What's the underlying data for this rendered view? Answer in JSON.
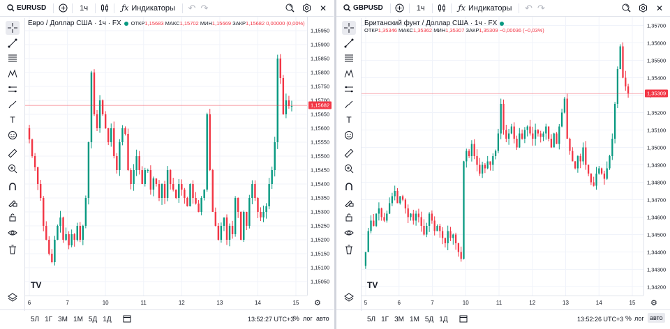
{
  "panels": [
    {
      "symbol": "EURUSD",
      "interval": "1ч",
      "indicators_label": "Индикаторы",
      "title": "Евро / Доллар США · 1ч · FX",
      "ohlc": {
        "open_label": "ОТКР",
        "open": "1,15683",
        "high_label": "МАКС",
        "high": "1,15702",
        "low_label": "МИН",
        "low": "1,15669",
        "close_label": "ЗАКР",
        "close": "1,15682",
        "change": "0,00000 (0,00%)"
      },
      "current_price": "1,15682",
      "price_labels": [
        "1,15950",
        "1,15900",
        "1,15850",
        "1,15800",
        "1,15750",
        "1,15700",
        "1,15650",
        "1,15600",
        "1,15550",
        "1,15500",
        "1,15450",
        "1,15400",
        "1,15350",
        "1,15300",
        "1,15250",
        "1,15200",
        "1,15150",
        "1,15100",
        "1,15050"
      ],
      "time_labels": [
        "6",
        "7",
        "10",
        "11",
        "12",
        "13",
        "14",
        "15"
      ],
      "clock": "13:52:27 UTC+3",
      "chart_data": {
        "type": "candlestick",
        "title": "Евро / Доллар США · 1ч · FX",
        "ylim": [
          1.15,
          1.16
        ],
        "x_ticks": [
          "6",
          "7",
          "10",
          "11",
          "12",
          "13",
          "14",
          "15"
        ],
        "last": 1.15682,
        "path": [
          1.156,
          1.1556,
          1.155,
          1.1546,
          1.154,
          1.1535,
          1.1525,
          1.152,
          1.1515,
          1.1512,
          1.152,
          1.1525,
          1.1528,
          1.152,
          1.1522,
          1.1518,
          1.1522,
          1.152,
          1.1525,
          1.152,
          1.1525,
          1.1535,
          1.1555,
          1.158,
          1.1565,
          1.156,
          1.157,
          1.1565,
          1.156,
          1.1555,
          1.156,
          1.155,
          1.1545,
          1.1555,
          1.156,
          1.1558,
          1.1545,
          1.154,
          1.1545,
          1.155,
          1.1545,
          1.154,
          1.1545,
          1.1545,
          1.1538,
          1.1542,
          1.154,
          1.1535,
          1.154,
          1.1535,
          1.1545,
          1.154,
          1.1538,
          1.1535,
          1.154,
          1.1538,
          1.1535,
          1.1532,
          1.154,
          1.1535,
          1.1533,
          1.153,
          1.1535,
          1.1538,
          1.1565,
          1.1545,
          1.153,
          1.1525,
          1.152,
          1.1525,
          1.1528,
          1.152,
          1.1525,
          1.1522,
          1.1535,
          1.153,
          1.152,
          1.153,
          1.1525,
          1.1535,
          1.154,
          1.1535,
          1.153,
          1.1528,
          1.153,
          1.1532,
          1.154,
          1.1545,
          1.1555,
          1.1585,
          1.1578,
          1.1565,
          1.157,
          1.1568,
          1.1568
        ]
      }
    },
    {
      "symbol": "GBPUSD",
      "interval": "1ч",
      "indicators_label": "Индикаторы",
      "title": "Британский фунт / Доллар США · 1ч · FX",
      "ohlc": {
        "open_label": "ОТКР",
        "open": "1,35346",
        "high_label": "МАКС",
        "high": "1,35362",
        "low_label": "МИН",
        "low": "1,35307",
        "close_label": "ЗАКР",
        "close": "1,35309",
        "change": "−0,00036 (−0,03%)"
      },
      "current_price": "1,35309",
      "price_labels": [
        "1,35700",
        "1,35600",
        "1,35500",
        "1,35400",
        "1,35300",
        "1,35200",
        "1,35100",
        "1,35000",
        "1,34900",
        "1,34800",
        "1,34700",
        "1,34600",
        "1,34500",
        "1,34400",
        "1,34300",
        "1,34200"
      ],
      "time_labels": [
        "5",
        "6",
        "7",
        "10",
        "11",
        "12",
        "13",
        "14",
        "15"
      ],
      "clock": "13:52:26 UTC+3",
      "chart_data": {
        "type": "candlestick",
        "title": "Британский фунт / Доллар США · 1ч · FX",
        "ylim": [
          1.3415,
          1.3575
        ],
        "x_ticks": [
          "5",
          "6",
          "7",
          "10",
          "11",
          "12",
          "13",
          "14",
          "15"
        ],
        "last": 1.35309,
        "path": [
          1.3432,
          1.344,
          1.3452,
          1.3458,
          1.3455,
          1.3462,
          1.3465,
          1.346,
          1.3458,
          1.3462,
          1.3468,
          1.3472,
          1.3475,
          1.3468,
          1.3472,
          1.347,
          1.3465,
          1.346,
          1.3462,
          1.3458,
          1.3462,
          1.346,
          1.3455,
          1.345,
          1.3455,
          1.3462,
          1.3458,
          1.3452,
          1.3455,
          1.3452,
          1.3448,
          1.3445,
          1.3452,
          1.3448,
          1.345,
          1.3445,
          1.344,
          1.3436,
          1.3492,
          1.3498,
          1.3495,
          1.3502,
          1.3495,
          1.349,
          1.3485,
          1.349,
          1.3488,
          1.3492,
          1.349,
          1.3495,
          1.3498,
          1.3508,
          1.3525,
          1.351,
          1.3505,
          1.3508,
          1.3512,
          1.3505,
          1.35,
          1.3508,
          1.3505,
          1.351,
          1.3512,
          1.3508,
          1.3505,
          1.351,
          1.3508,
          1.3506,
          1.3508,
          1.3512,
          1.3505,
          1.35,
          1.3508,
          1.3502,
          1.3512,
          1.352,
          1.3528,
          1.3505,
          1.3498,
          1.3492,
          1.3488,
          1.3495,
          1.3492,
          1.35,
          1.349,
          1.3485,
          1.348,
          1.3478,
          1.3485,
          1.3488,
          1.3485,
          1.3482,
          1.3488,
          1.3495,
          1.3505,
          1.3525,
          1.3545,
          1.3558,
          1.354,
          1.3535,
          1.3531
        ]
      }
    }
  ],
  "bottom_ranges": [
    "5Л",
    "1Г",
    "3М",
    "1М",
    "5Д",
    "1Д"
  ],
  "log_label": "лог",
  "auto_label": "авто",
  "percent_label": "%",
  "brand_logo": "TV",
  "colors": {
    "up": "#089981",
    "down": "#f23645",
    "grid": "#f0f3fa",
    "price_line": "#f23645"
  },
  "icons": [
    "search-icon",
    "plus-icon",
    "candles-icon",
    "indicators-icon",
    "undo-icon",
    "redo-icon",
    "snapshot-icon",
    "settings-icon",
    "close-icon",
    "crosshair-icon",
    "trendline-icon",
    "fib-icon",
    "pattern-icon",
    "measure-icon",
    "brush-icon",
    "text-icon",
    "emoji-icon",
    "ruler-icon",
    "zoom-icon",
    "magnet-icon",
    "lock-draw-icon",
    "lock-icon",
    "eye-icon",
    "trash-icon",
    "layers-icon",
    "calendar-range-icon",
    "gear-icon"
  ]
}
